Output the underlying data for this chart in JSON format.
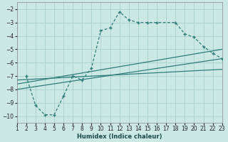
{
  "xlabel": "Humidex (Indice chaleur)",
  "background_color": "#cce8e5",
  "grid_color": "#aacfcc",
  "line_color": "#2d7d78",
  "xlim": [
    1,
    23
  ],
  "ylim": [
    -10.5,
    -1.5
  ],
  "xticks": [
    1,
    2,
    3,
    4,
    5,
    6,
    7,
    8,
    9,
    10,
    11,
    12,
    13,
    14,
    15,
    16,
    17,
    18,
    19,
    20,
    21,
    22,
    23
  ],
  "yticks": [
    -10,
    -9,
    -8,
    -7,
    -6,
    -5,
    -4,
    -3,
    -2
  ],
  "main_x": [
    2,
    3,
    4,
    5,
    6,
    7,
    8,
    9,
    10,
    11,
    12,
    13,
    14,
    15,
    16,
    18,
    19,
    20,
    21,
    22,
    23
  ],
  "main_y": [
    -7.0,
    -9.2,
    -9.9,
    -9.9,
    -8.5,
    -7.0,
    -7.3,
    -6.4,
    -3.6,
    -3.4,
    -2.2,
    -2.8,
    -3.0,
    -3.0,
    -3.0,
    -3.0,
    -3.85,
    -4.1,
    -4.8,
    -5.3,
    -5.7
  ],
  "line1_x": [
    1,
    23
  ],
  "line1_y": [
    -8.0,
    -5.7
  ],
  "line2_x": [
    1,
    23
  ],
  "line2_y": [
    -7.6,
    -5.0
  ],
  "line3_x": [
    1,
    23
  ],
  "line3_y": [
    -7.3,
    -6.5
  ]
}
